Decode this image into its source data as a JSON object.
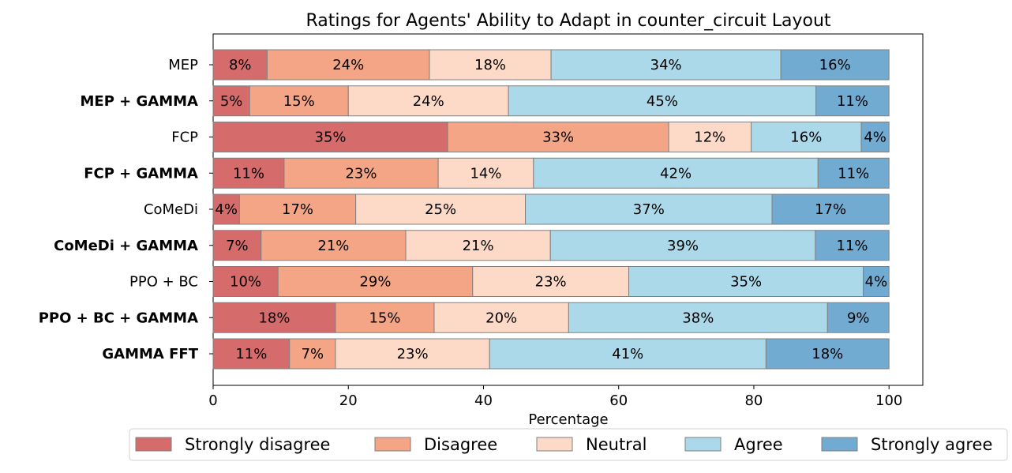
{
  "chart_data": {
    "type": "bar",
    "orientation": "horizontal",
    "stacked": true,
    "title": "Ratings for Agents' Ability to Adapt in counter_circuit Layout",
    "xlabel": "Percentage",
    "ylabel": "",
    "xlim": [
      0,
      105
    ],
    "xticks": [
      0,
      20,
      40,
      60,
      80,
      100
    ],
    "grid": false,
    "legend_position": "bottom",
    "categories": [
      "MEP",
      "MEP + GAMMA",
      "FCP",
      "FCP + GAMMA",
      "CoMeDi",
      "CoMeDi + GAMMA",
      "PPO + BC",
      "PPO + BC + GAMMA",
      "GAMMA FFT"
    ],
    "bold_categories": [
      "MEP + GAMMA",
      "FCP + GAMMA",
      "CoMeDi + GAMMA",
      "PPO + BC + GAMMA",
      "GAMMA FFT"
    ],
    "series": [
      {
        "name": "Strongly disagree",
        "color": "#d66b6b",
        "values": [
          8,
          5.4,
          34.7,
          10.5,
          3.9,
          7.1,
          9.6,
          18.1,
          11.3
        ]
      },
      {
        "name": "Disagree",
        "color": "#f3a585",
        "values": [
          24,
          14.6,
          32.7,
          22.8,
          17.2,
          21.4,
          28.8,
          14.6,
          6.8
        ]
      },
      {
        "name": "Neutral",
        "color": "#fddac7",
        "values": [
          18,
          23.7,
          12.2,
          14.1,
          25.1,
          21.4,
          23.1,
          19.9,
          22.8
        ]
      },
      {
        "name": "Agree",
        "color": "#acd9e9",
        "values": [
          34,
          45.5,
          16.3,
          42.1,
          36.5,
          39.2,
          34.7,
          38.3,
          40.9
        ]
      },
      {
        "name": "Strongly agree",
        "color": "#72abd2",
        "values": [
          16,
          10.8,
          4.1,
          10.5,
          17.3,
          10.9,
          3.8,
          9.1,
          18.2
        ]
      }
    ],
    "labels": [
      [
        "8%",
        "5%",
        "35%",
        "11%",
        "4%",
        "7%",
        "10%",
        "18%",
        "11%"
      ],
      [
        "24%",
        "15%",
        "33%",
        "23%",
        "17%",
        "21%",
        "29%",
        "15%",
        "7%"
      ],
      [
        "18%",
        "24%",
        "12%",
        "14%",
        "25%",
        "21%",
        "23%",
        "20%",
        "23%"
      ],
      [
        "34%",
        "45%",
        "16%",
        "42%",
        "37%",
        "39%",
        "35%",
        "38%",
        "41%"
      ],
      [
        "16%",
        "11%",
        "4%",
        "11%",
        "17%",
        "11%",
        "4%",
        "9%",
        "18%"
      ]
    ]
  }
}
